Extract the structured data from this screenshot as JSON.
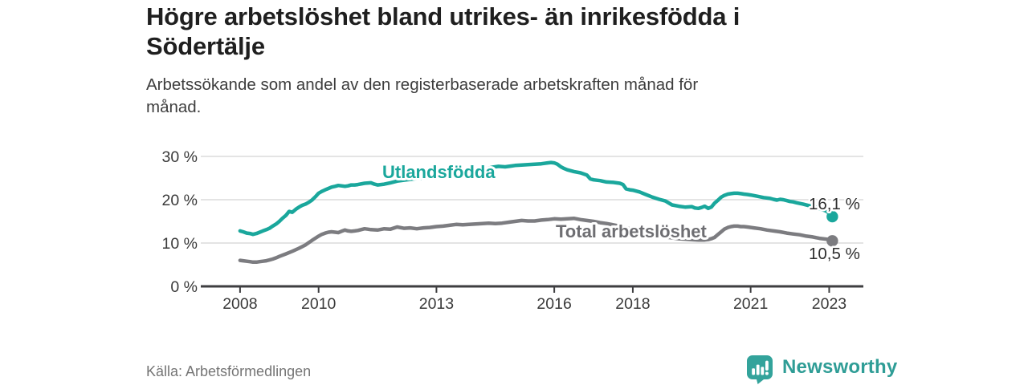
{
  "header": {
    "title_lines": [
      "Högre arbetslöshet bland utrikes- än inrikesfödda i",
      "Södertälje"
    ],
    "subtitle_lines": [
      "Arbetssökande som andel av den registerbaserade arbetskraften månad för",
      "månad."
    ]
  },
  "footer": {
    "source": "Källa: Arbetsförmedlingen",
    "brand": "Newsworthy"
  },
  "colors": {
    "accent_teal": "#1aa79c",
    "line_gray": "#7c7c80",
    "gray_label": "#6e6e72",
    "grid": "#dbdbdb",
    "axis": "#3e3e40",
    "tick_text": "#3a3a3a",
    "value_text": "#2e2e2e",
    "logo_teal": "#33a39b",
    "logo_text_teal": "#2f9d96"
  },
  "chart_data": {
    "type": "line",
    "title": "Högre arbetslöshet bland utrikes- än inrikesfödda i Södertälje",
    "subtitle": "Arbetssökande som andel av den registerbaserade arbetskraften månad för månad.",
    "xlabel": "",
    "ylabel": "",
    "grid": "horizontal",
    "legend_position": "inline-labels",
    "x_range": [
      2007.0,
      2023.87
    ],
    "y_range": [
      0,
      30
    ],
    "x_ticks": [
      2008,
      2010,
      2013,
      2016,
      2018,
      2021,
      2023
    ],
    "x_tick_labels": [
      "2008",
      "2010",
      "2013",
      "2016",
      "2018",
      "2021",
      "2023"
    ],
    "y_ticks": [
      0,
      10,
      20,
      30
    ],
    "y_tick_labels": [
      "0 %",
      "10 %",
      "20 %",
      "30 %"
    ],
    "series": [
      {
        "name": "Utlandsfödda",
        "color": "#1aa79c",
        "label_color": "#1aa79c",
        "end_label": "16,1 %",
        "end_value": 16.1,
        "points": [
          [
            2008.0,
            12.8
          ],
          [
            2008.08,
            12.6
          ],
          [
            2008.17,
            12.3
          ],
          [
            2008.25,
            12.2
          ],
          [
            2008.33,
            12.0
          ],
          [
            2008.42,
            12.2
          ],
          [
            2008.5,
            12.5
          ],
          [
            2008.58,
            12.8
          ],
          [
            2008.67,
            13.1
          ],
          [
            2008.75,
            13.4
          ],
          [
            2008.83,
            13.9
          ],
          [
            2008.92,
            14.4
          ],
          [
            2009.0,
            15.0
          ],
          [
            2009.08,
            15.7
          ],
          [
            2009.17,
            16.4
          ],
          [
            2009.25,
            17.3
          ],
          [
            2009.33,
            17.1
          ],
          [
            2009.42,
            17.8
          ],
          [
            2009.5,
            18.3
          ],
          [
            2009.58,
            18.7
          ],
          [
            2009.67,
            19.0
          ],
          [
            2009.75,
            19.4
          ],
          [
            2009.83,
            19.9
          ],
          [
            2009.92,
            20.7
          ],
          [
            2010.0,
            21.5
          ],
          [
            2010.08,
            21.9
          ],
          [
            2010.17,
            22.3
          ],
          [
            2010.25,
            22.6
          ],
          [
            2010.33,
            22.9
          ],
          [
            2010.42,
            23.1
          ],
          [
            2010.5,
            23.3
          ],
          [
            2010.58,
            23.2
          ],
          [
            2010.67,
            23.1
          ],
          [
            2010.75,
            23.2
          ],
          [
            2010.83,
            23.4
          ],
          [
            2010.92,
            23.4
          ],
          [
            2011.0,
            23.5
          ],
          [
            2011.17,
            23.8
          ],
          [
            2011.33,
            23.9
          ],
          [
            2011.42,
            23.6
          ],
          [
            2011.5,
            23.4
          ],
          [
            2011.67,
            23.6
          ],
          [
            2011.83,
            23.9
          ],
          [
            2012.0,
            24.3
          ],
          [
            2012.17,
            24.5
          ],
          [
            2012.33,
            24.7
          ],
          [
            2012.5,
            24.9
          ],
          [
            2012.67,
            25.0
          ],
          [
            2012.83,
            25.2
          ],
          [
            2013.0,
            25.4
          ],
          [
            2013.17,
            25.5
          ],
          [
            2013.33,
            25.7
          ],
          [
            2013.5,
            26.0
          ],
          [
            2013.67,
            26.2
          ],
          [
            2013.83,
            26.5
          ],
          [
            2014.0,
            26.8
          ],
          [
            2014.08,
            27.1
          ],
          [
            2014.17,
            27.3
          ],
          [
            2014.25,
            27.0
          ],
          [
            2014.33,
            27.3
          ],
          [
            2014.42,
            27.5
          ],
          [
            2014.58,
            27.7
          ],
          [
            2014.75,
            27.6
          ],
          [
            2014.92,
            27.8
          ],
          [
            2015.0,
            27.9
          ],
          [
            2015.17,
            28.0
          ],
          [
            2015.33,
            28.1
          ],
          [
            2015.5,
            28.2
          ],
          [
            2015.67,
            28.3
          ],
          [
            2015.83,
            28.5
          ],
          [
            2015.92,
            28.6
          ],
          [
            2016.0,
            28.5
          ],
          [
            2016.08,
            28.2
          ],
          [
            2016.17,
            27.6
          ],
          [
            2016.25,
            27.2
          ],
          [
            2016.33,
            26.9
          ],
          [
            2016.5,
            26.5
          ],
          [
            2016.67,
            26.2
          ],
          [
            2016.83,
            25.7
          ],
          [
            2016.92,
            24.8
          ],
          [
            2017.0,
            24.6
          ],
          [
            2017.17,
            24.4
          ],
          [
            2017.33,
            24.1
          ],
          [
            2017.5,
            24.0
          ],
          [
            2017.67,
            23.8
          ],
          [
            2017.75,
            23.5
          ],
          [
            2017.83,
            22.5
          ],
          [
            2017.92,
            22.3
          ],
          [
            2018.0,
            22.2
          ],
          [
            2018.17,
            21.8
          ],
          [
            2018.33,
            21.2
          ],
          [
            2018.5,
            20.6
          ],
          [
            2018.67,
            20.1
          ],
          [
            2018.83,
            19.7
          ],
          [
            2019.0,
            18.8
          ],
          [
            2019.17,
            18.5
          ],
          [
            2019.33,
            18.3
          ],
          [
            2019.5,
            18.4
          ],
          [
            2019.58,
            18.1
          ],
          [
            2019.67,
            18.0
          ],
          [
            2019.75,
            18.2
          ],
          [
            2019.83,
            18.5
          ],
          [
            2019.92,
            18.0
          ],
          [
            2020.0,
            18.3
          ],
          [
            2020.08,
            19.2
          ],
          [
            2020.17,
            19.9
          ],
          [
            2020.25,
            20.6
          ],
          [
            2020.33,
            21.0
          ],
          [
            2020.42,
            21.3
          ],
          [
            2020.5,
            21.4
          ],
          [
            2020.58,
            21.5
          ],
          [
            2020.67,
            21.5
          ],
          [
            2020.75,
            21.4
          ],
          [
            2020.83,
            21.3
          ],
          [
            2020.92,
            21.2
          ],
          [
            2021.0,
            21.1
          ],
          [
            2021.17,
            20.8
          ],
          [
            2021.33,
            20.5
          ],
          [
            2021.5,
            20.3
          ],
          [
            2021.58,
            20.1
          ],
          [
            2021.67,
            19.9
          ],
          [
            2021.75,
            20.1
          ],
          [
            2021.83,
            20.0
          ],
          [
            2021.92,
            19.8
          ],
          [
            2022.0,
            19.6
          ],
          [
            2022.08,
            19.5
          ],
          [
            2022.17,
            19.3
          ],
          [
            2022.33,
            19.0
          ],
          [
            2022.5,
            18.6
          ],
          [
            2022.67,
            18.2
          ],
          [
            2022.83,
            17.7
          ],
          [
            2022.92,
            17.4
          ],
          [
            2023.0,
            16.9
          ],
          [
            2023.08,
            16.1
          ]
        ]
      },
      {
        "name": "Total arbetslöshet",
        "color": "#7c7c80",
        "label_color": "#6e6e72",
        "end_label": "10,5 %",
        "end_value": 10.5,
        "points": [
          [
            2008.0,
            6.0
          ],
          [
            2008.08,
            5.9
          ],
          [
            2008.17,
            5.8
          ],
          [
            2008.25,
            5.7
          ],
          [
            2008.33,
            5.6
          ],
          [
            2008.42,
            5.6
          ],
          [
            2008.5,
            5.7
          ],
          [
            2008.58,
            5.8
          ],
          [
            2008.67,
            5.9
          ],
          [
            2008.75,
            6.1
          ],
          [
            2008.83,
            6.3
          ],
          [
            2008.92,
            6.6
          ],
          [
            2009.0,
            6.9
          ],
          [
            2009.17,
            7.5
          ],
          [
            2009.33,
            8.1
          ],
          [
            2009.5,
            8.8
          ],
          [
            2009.67,
            9.6
          ],
          [
            2009.83,
            10.6
          ],
          [
            2010.0,
            11.6
          ],
          [
            2010.08,
            12.0
          ],
          [
            2010.17,
            12.3
          ],
          [
            2010.25,
            12.5
          ],
          [
            2010.33,
            12.6
          ],
          [
            2010.42,
            12.5
          ],
          [
            2010.5,
            12.4
          ],
          [
            2010.58,
            12.7
          ],
          [
            2010.67,
            13.0
          ],
          [
            2010.75,
            12.8
          ],
          [
            2010.83,
            12.7
          ],
          [
            2010.92,
            12.8
          ],
          [
            2011.0,
            12.9
          ],
          [
            2011.17,
            13.3
          ],
          [
            2011.25,
            13.2
          ],
          [
            2011.33,
            13.1
          ],
          [
            2011.5,
            13.0
          ],
          [
            2011.67,
            13.3
          ],
          [
            2011.83,
            13.2
          ],
          [
            2012.0,
            13.7
          ],
          [
            2012.17,
            13.4
          ],
          [
            2012.33,
            13.5
          ],
          [
            2012.5,
            13.3
          ],
          [
            2012.67,
            13.5
          ],
          [
            2012.83,
            13.6
          ],
          [
            2013.0,
            13.8
          ],
          [
            2013.17,
            13.9
          ],
          [
            2013.33,
            14.1
          ],
          [
            2013.5,
            14.3
          ],
          [
            2013.67,
            14.2
          ],
          [
            2013.83,
            14.3
          ],
          [
            2014.0,
            14.4
          ],
          [
            2014.17,
            14.5
          ],
          [
            2014.33,
            14.6
          ],
          [
            2014.5,
            14.5
          ],
          [
            2014.67,
            14.6
          ],
          [
            2014.83,
            14.8
          ],
          [
            2015.0,
            15.0
          ],
          [
            2015.17,
            15.2
          ],
          [
            2015.33,
            15.1
          ],
          [
            2015.5,
            15.1
          ],
          [
            2015.67,
            15.3
          ],
          [
            2015.83,
            15.4
          ],
          [
            2016.0,
            15.6
          ],
          [
            2016.17,
            15.5
          ],
          [
            2016.33,
            15.6
          ],
          [
            2016.5,
            15.7
          ],
          [
            2016.67,
            15.4
          ],
          [
            2016.83,
            15.2
          ],
          [
            2017.0,
            15.0
          ],
          [
            2017.17,
            14.7
          ],
          [
            2017.33,
            14.5
          ],
          [
            2017.5,
            14.2
          ],
          [
            2017.67,
            13.9
          ],
          [
            2017.83,
            13.5
          ],
          [
            2018.0,
            13.1
          ],
          [
            2018.17,
            12.7
          ],
          [
            2018.33,
            12.3
          ],
          [
            2018.5,
            12.0
          ],
          [
            2018.67,
            11.7
          ],
          [
            2018.83,
            11.4
          ],
          [
            2019.0,
            11.2
          ],
          [
            2019.17,
            11.0
          ],
          [
            2019.33,
            10.9
          ],
          [
            2019.5,
            10.8
          ],
          [
            2019.67,
            10.7
          ],
          [
            2019.83,
            10.7
          ],
          [
            2019.92,
            10.8
          ],
          [
            2020.0,
            11.0
          ],
          [
            2020.08,
            11.3
          ],
          [
            2020.17,
            12.0
          ],
          [
            2020.25,
            12.6
          ],
          [
            2020.33,
            13.2
          ],
          [
            2020.42,
            13.6
          ],
          [
            2020.5,
            13.8
          ],
          [
            2020.58,
            13.9
          ],
          [
            2020.67,
            13.9
          ],
          [
            2020.75,
            13.8
          ],
          [
            2020.83,
            13.8
          ],
          [
            2020.92,
            13.7
          ],
          [
            2021.08,
            13.5
          ],
          [
            2021.25,
            13.3
          ],
          [
            2021.42,
            13.0
          ],
          [
            2021.58,
            12.8
          ],
          [
            2021.75,
            12.6
          ],
          [
            2021.92,
            12.3
          ],
          [
            2022.08,
            12.1
          ],
          [
            2022.25,
            11.9
          ],
          [
            2022.42,
            11.6
          ],
          [
            2022.58,
            11.4
          ],
          [
            2022.75,
            11.1
          ],
          [
            2022.92,
            10.9
          ],
          [
            2023.0,
            10.8
          ],
          [
            2023.08,
            10.5
          ]
        ]
      }
    ]
  }
}
